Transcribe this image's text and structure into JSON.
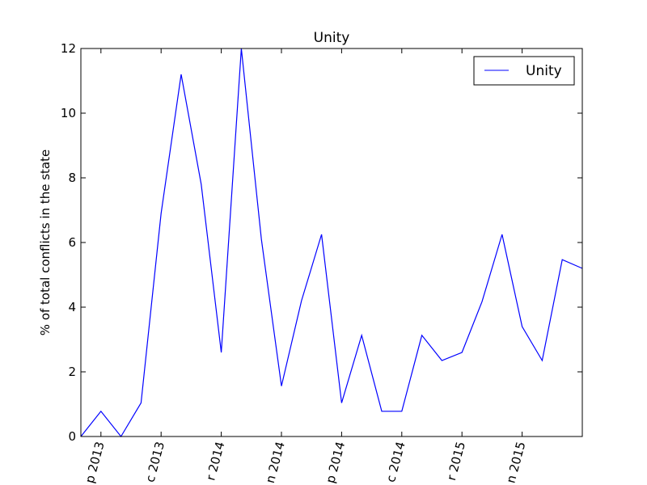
{
  "chart_data": {
    "type": "line",
    "title": "Unity",
    "y_label": "% of total conflicts in the state",
    "categories": [
      null,
      "p 2013",
      null,
      null,
      "c 2013",
      null,
      null,
      "r 2014",
      null,
      null,
      "n 2014",
      null,
      null,
      "p 2014",
      null,
      null,
      "c 2014",
      null,
      null,
      "r 2015",
      null,
      null,
      "n 2015",
      null,
      null,
      null
    ],
    "series": [
      {
        "name": "Unity",
        "color": "#0000ff",
        "values": [
          0,
          0.78,
          0,
          1.04,
          6.9,
          11.2,
          7.8,
          2.6,
          12.0,
          6.1,
          1.56,
          4.2,
          6.25,
          1.04,
          3.13,
          0.78,
          0.78,
          3.13,
          2.35,
          2.6,
          4.17,
          6.25,
          3.4,
          2.35,
          5.47,
          5.2
        ]
      }
    ],
    "ylim": [
      0,
      12
    ],
    "yticks": [
      0,
      2,
      4,
      6,
      8,
      10,
      12
    ],
    "legend": "upper right"
  }
}
